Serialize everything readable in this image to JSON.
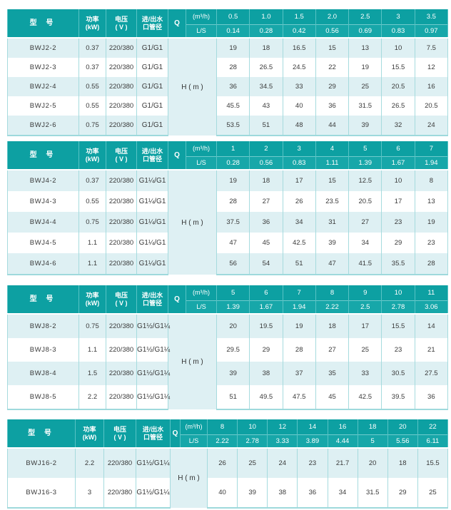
{
  "theme": {
    "header_bg": "#0da0a2",
    "header_sub_bg": "#17a7a9",
    "header_divider": "#58c3c5",
    "body_divider": "#a6dbde",
    "row_alt_bg": "#def0f3",
    "row_bg": "#ffffff",
    "table_bottom_line": "#9ed9dc",
    "header_text": "#ffffff",
    "body_text": "#3a3a3a"
  },
  "header": {
    "model": "型 号",
    "power": [
      "功率",
      "(kW)"
    ],
    "voltage": [
      "电压",
      "( V )"
    ],
    "pipe": [
      "进/出水",
      "口管径"
    ],
    "q": "Q",
    "flow_unit": "(m³/h)",
    "ls_unit": "L/S",
    "head_unit": "H ( m )"
  },
  "tables": [
    {
      "series": "BWJ2",
      "flow": [
        "0.5",
        "1.0",
        "1.5",
        "2.0",
        "2.5",
        "3",
        "3.5"
      ],
      "ls": [
        "0.14",
        "0.28",
        "0.42",
        "0.56",
        "0.69",
        "0.83",
        "0.97"
      ],
      "rows": [
        {
          "model": "BWJ2-2",
          "power": "0.37",
          "voltage": "220/380",
          "pipe": "G1/G1",
          "heads": [
            "19",
            "18",
            "16.5",
            "15",
            "13",
            "10",
            "7.5"
          ]
        },
        {
          "model": "BWJ2-3",
          "power": "0.37",
          "voltage": "220/380",
          "pipe": "G1/G1",
          "heads": [
            "28",
            "26.5",
            "24.5",
            "22",
            "19",
            "15.5",
            "12"
          ]
        },
        {
          "model": "BWJ2-4",
          "power": "0.55",
          "voltage": "220/380",
          "pipe": "G1/G1",
          "heads": [
            "36",
            "34.5",
            "33",
            "29",
            "25",
            "20.5",
            "16"
          ]
        },
        {
          "model": "BWJ2-5",
          "power": "0.55",
          "voltage": "220/380",
          "pipe": "G1/G1",
          "heads": [
            "45.5",
            "43",
            "40",
            "36",
            "31.5",
            "26.5",
            "20.5"
          ]
        },
        {
          "model": "BWJ2-6",
          "power": "0.75",
          "voltage": "220/380",
          "pipe": "G1/G1",
          "heads": [
            "53.5",
            "51",
            "48",
            "44",
            "39",
            "32",
            "24"
          ]
        }
      ]
    },
    {
      "series": "BWJ4",
      "flow": [
        "1",
        "2",
        "3",
        "4",
        "5",
        "6",
        "7"
      ],
      "ls": [
        "0.28",
        "0.56",
        "0.83",
        "1.11",
        "1.39",
        "1.67",
        "1.94"
      ],
      "rows": [
        {
          "model": "BWJ4-2",
          "power": "0.37",
          "voltage": "220/380",
          "pipe": "G1¼/G1",
          "heads": [
            "19",
            "18",
            "17",
            "15",
            "12.5",
            "10",
            "8"
          ]
        },
        {
          "model": "BWJ4-3",
          "power": "0.55",
          "voltage": "220/380",
          "pipe": "G1¼/G1",
          "heads": [
            "28",
            "27",
            "26",
            "23.5",
            "20.5",
            "17",
            "13"
          ]
        },
        {
          "model": "BWJ4-4",
          "power": "0.75",
          "voltage": "220/380",
          "pipe": "G1¼/G1",
          "heads": [
            "37.5",
            "36",
            "34",
            "31",
            "27",
            "23",
            "19"
          ]
        },
        {
          "model": "BWJ4-5",
          "power": "1.1",
          "voltage": "220/380",
          "pipe": "G1¼/G1",
          "heads": [
            "47",
            "45",
            "42.5",
            "39",
            "34",
            "29",
            "23"
          ]
        },
        {
          "model": "BWJ4-6",
          "power": "1.1",
          "voltage": "220/380",
          "pipe": "G1¼/G1",
          "heads": [
            "56",
            "54",
            "51",
            "47",
            "41.5",
            "35.5",
            "28"
          ]
        }
      ]
    },
    {
      "series": "BWJ8",
      "flow": [
        "5",
        "6",
        "7",
        "8",
        "9",
        "10",
        "11"
      ],
      "ls": [
        "1.39",
        "1.67",
        "1.94",
        "2.22",
        "2.5",
        "2.78",
        "3.06"
      ],
      "rows": [
        {
          "model": "BWJ8-2",
          "power": "0.75",
          "voltage": "220/380",
          "pipe": "G1½/G1¼",
          "heads": [
            "20",
            "19.5",
            "19",
            "18",
            "17",
            "15.5",
            "14"
          ]
        },
        {
          "model": "BWJ8-3",
          "power": "1.1",
          "voltage": "220/380",
          "pipe": "G1½/G1¼",
          "heads": [
            "29.5",
            "29",
            "28",
            "27",
            "25",
            "23",
            "21"
          ]
        },
        {
          "model": "BWJ8-4",
          "power": "1.5",
          "voltage": "220/380",
          "pipe": "G1½/G1¼",
          "heads": [
            "39",
            "38",
            "37",
            "35",
            "33",
            "30.5",
            "27.5"
          ]
        },
        {
          "model": "BWJ8-5",
          "power": "2.2",
          "voltage": "220/380",
          "pipe": "G1½/G1¼",
          "heads": [
            "51",
            "49.5",
            "47.5",
            "45",
            "42.5",
            "39.5",
            "36"
          ]
        }
      ]
    },
    {
      "series": "BWJ16",
      "flow": [
        "8",
        "10",
        "12",
        "14",
        "16",
        "18",
        "20",
        "22"
      ],
      "ls": [
        "2.22",
        "2.78",
        "3.33",
        "3.89",
        "4.44",
        "5",
        "5.56",
        "6.11"
      ],
      "rows": [
        {
          "model": "BWJ16-2",
          "power": "2.2",
          "voltage": "220/380",
          "pipe": "G1½/G1¼",
          "heads": [
            "26",
            "25",
            "24",
            "23",
            "21.7",
            "20",
            "18",
            "15.5"
          ]
        },
        {
          "model": "BWJ16-3",
          "power": "3",
          "voltage": "220/380",
          "pipe": "G1½/G1¼",
          "heads": [
            "40",
            "39",
            "38",
            "36",
            "34",
            "31.5",
            "29",
            "25"
          ]
        }
      ]
    }
  ]
}
